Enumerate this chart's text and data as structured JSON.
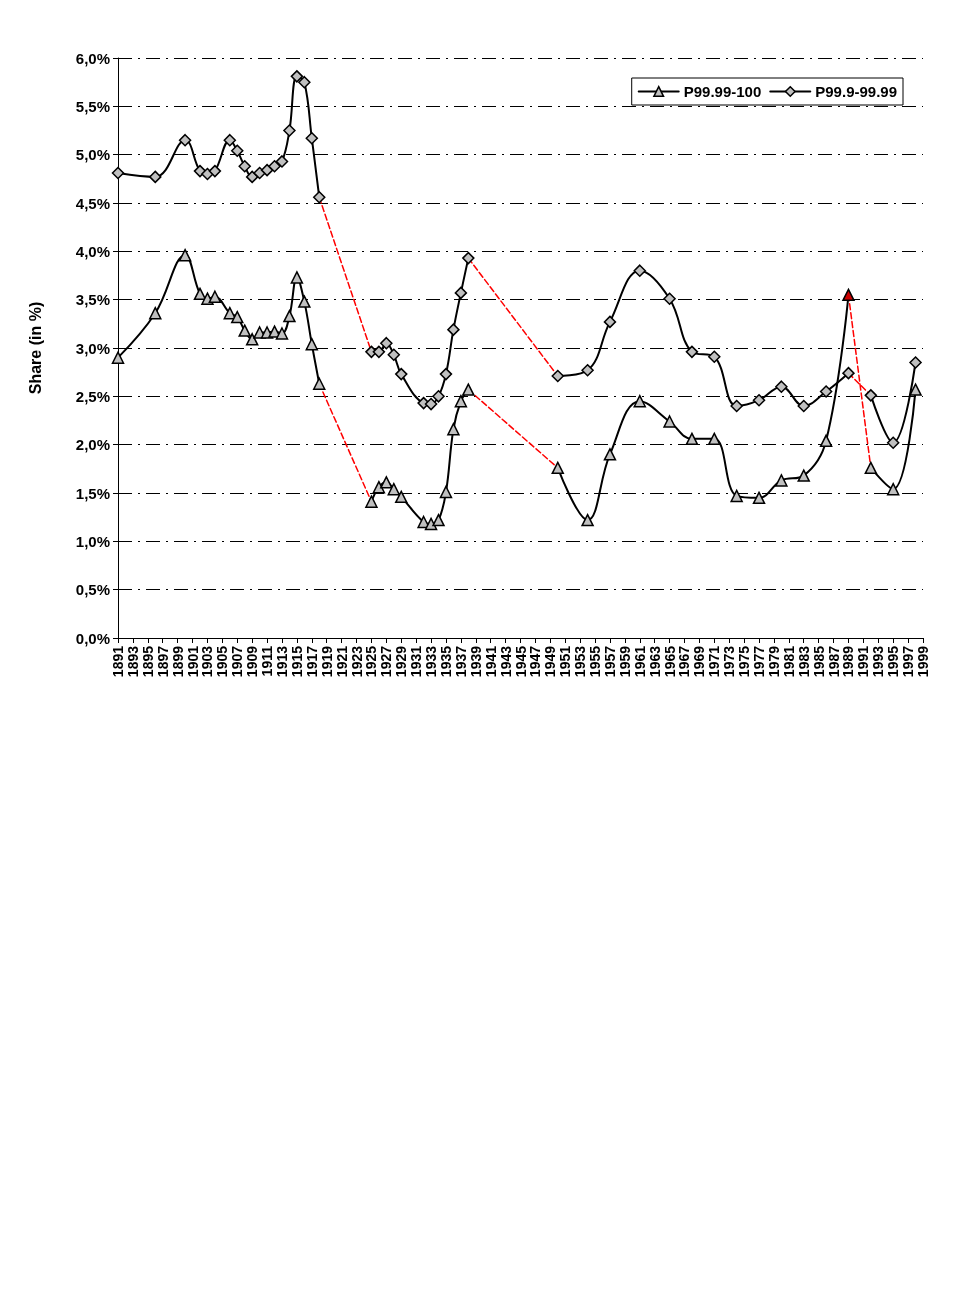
{
  "chart_data": {
    "type": "line",
    "ylabel": "Share (in %)",
    "xlim": [
      1891,
      1999
    ],
    "xticks": [
      1891,
      1893,
      1895,
      1897,
      1899,
      1901,
      1903,
      1905,
      1907,
      1909,
      1911,
      1913,
      1915,
      1917,
      1919,
      1921,
      1923,
      1925,
      1927,
      1929,
      1931,
      1933,
      1935,
      1937,
      1939,
      1941,
      1943,
      1945,
      1947,
      1949,
      1951,
      1953,
      1955,
      1957,
      1959,
      1961,
      1963,
      1965,
      1967,
      1969,
      1971,
      1973,
      1975,
      1977,
      1979,
      1981,
      1983,
      1985,
      1987,
      1989,
      1991,
      1993,
      1995,
      1997,
      1999
    ],
    "ylim": [
      0,
      6
    ],
    "yticks": [
      {
        "value": 0,
        "label": "0,0%"
      },
      {
        "value": 0.5,
        "label": "0,5%"
      },
      {
        "value": 1,
        "label": "1,0%"
      },
      {
        "value": 1.5,
        "label": "1,5%"
      },
      {
        "value": 2,
        "label": "2,0%"
      },
      {
        "value": 2.5,
        "label": "2,5%"
      },
      {
        "value": 3,
        "label": "3,0%"
      },
      {
        "value": 3.5,
        "label": "3,5%"
      },
      {
        "value": 4,
        "label": "4,0%"
      },
      {
        "value": 4.5,
        "label": "4,5%"
      },
      {
        "value": 5,
        "label": "5,0%"
      },
      {
        "value": 5.5,
        "label": "5,5%"
      },
      {
        "value": 6,
        "label": "6,0%"
      }
    ],
    "grid": "y",
    "legend": "top right",
    "series": [
      {
        "name": "P99.99-100",
        "color": "#000000",
        "marker": "triangle",
        "line_style": "solid",
        "x": [
          1891,
          1896,
          1900,
          1902,
          1903,
          1904,
          1906,
          1907,
          1908,
          1909,
          1910,
          1911,
          1912,
          1913,
          1914,
          1915,
          1916,
          1917,
          1918,
          1921,
          1925,
          1926,
          1927,
          1928,
          1929,
          1932,
          1933,
          1934,
          1935,
          1936,
          1937,
          1938,
          1944,
          1950,
          1954,
          1957,
          1961,
          1965,
          1968,
          1971,
          1974,
          1977,
          1980,
          1983,
          1986,
          1989,
          1990,
          1992,
          1995,
          1998
        ],
        "values": [
          2.9,
          3.36,
          3.96,
          3.56,
          3.51,
          3.53,
          3.36,
          3.32,
          3.18,
          3.09,
          3.16,
          3.16,
          3.17,
          3.15,
          3.33,
          3.73,
          3.48,
          3.04,
          2.63,
          null,
          1.41,
          1.56,
          1.61,
          1.54,
          1.46,
          1.2,
          1.18,
          1.22,
          1.51,
          2.16,
          2.45,
          2.57,
          null,
          1.76,
          1.22,
          1.9,
          2.45,
          2.24,
          2.06,
          2.06,
          1.47,
          1.45,
          1.63,
          1.68,
          2.04,
          3.55,
          null,
          1.76,
          1.54,
          2.57
        ],
        "colors": [
          "#c0c0c0",
          "#c0c0c0",
          "#c0c0c0",
          "#c0c0c0",
          "#c0c0c0",
          "#c0c0c0",
          "#c0c0c0",
          "#c0c0c0",
          "#c0c0c0",
          "#c0c0c0",
          "#c0c0c0",
          "#c0c0c0",
          "#c0c0c0",
          "#c0c0c0",
          "#c0c0c0",
          "#c0c0c0",
          "#c0c0c0",
          "#c0c0c0",
          "#c0c0c0",
          null,
          "#c0c0c0",
          "#c0c0c0",
          "#c0c0c0",
          "#c0c0c0",
          "#c0c0c0",
          "#c0c0c0",
          "#c0c0c0",
          "#c0c0c0",
          "#c0c0c0",
          "#c0c0c0",
          "#c0c0c0",
          "#c0c0c0",
          null,
          "#c0c0c0",
          "#c0c0c0",
          "#c0c0c0",
          "#c0c0c0",
          "#c0c0c0",
          "#c0c0c0",
          "#c0c0c0",
          "#c0c0c0",
          "#c0c0c0",
          "#c0c0c0",
          "#c0c0c0",
          "#c0c0c0",
          "#cc0000",
          null,
          "#c0c0c0",
          "#c0c0c0",
          "#c0c0c0"
        ]
      },
      {
        "name": "P99.9-99.99",
        "color": "#000000",
        "marker": "diamond",
        "line_style": "solid",
        "x": [
          1891,
          1896,
          1900,
          1902,
          1903,
          1904,
          1906,
          1907,
          1908,
          1909,
          1910,
          1911,
          1912,
          1913,
          1914,
          1915,
          1916,
          1917,
          1918,
          1921,
          1925,
          1926,
          1927,
          1928,
          1929,
          1932,
          1933,
          1934,
          1935,
          1936,
          1937,
          1938,
          1944,
          1950,
          1954,
          1957,
          1961,
          1965,
          1968,
          1971,
          1974,
          1977,
          1980,
          1983,
          1986,
          1989,
          1990,
          1992,
          1995,
          1998
        ],
        "values": [
          4.81,
          4.77,
          5.15,
          4.83,
          4.8,
          4.83,
          5.15,
          5.04,
          4.88,
          4.77,
          4.81,
          4.84,
          4.88,
          4.93,
          5.25,
          5.81,
          5.75,
          5.17,
          4.56,
          null,
          2.96,
          2.96,
          3.05,
          2.93,
          2.73,
          2.43,
          2.42,
          2.5,
          2.73,
          3.19,
          3.57,
          3.93,
          null,
          2.71,
          2.77,
          3.27,
          3.8,
          3.51,
          2.96,
          2.91,
          2.4,
          2.46,
          2.6,
          2.4,
          2.55,
          2.74,
          null,
          2.51,
          2.02,
          2.85
        ],
        "colors": [
          "#c0c0c0",
          "#c0c0c0",
          "#c0c0c0",
          "#c0c0c0",
          "#c0c0c0",
          "#c0c0c0",
          "#c0c0c0",
          "#c0c0c0",
          "#c0c0c0",
          "#c0c0c0",
          "#c0c0c0",
          "#c0c0c0",
          "#c0c0c0",
          "#c0c0c0",
          "#c0c0c0",
          "#c0c0c0",
          "#c0c0c0",
          "#c0c0c0",
          "#c0c0c0",
          null,
          "#c0c0c0",
          "#c0c0c0",
          "#c0c0c0",
          "#c0c0c0",
          "#c0c0c0",
          "#c0c0c0",
          "#c0c0c0",
          "#c0c0c0",
          "#c0c0c0",
          "#c0c0c0",
          "#c0c0c0",
          "#c0c0c0",
          null,
          "#c0c0c0",
          "#c0c0c0",
          "#c0c0c0",
          "#c0c0c0",
          "#c0c0c0",
          "#c0c0c0",
          "#c0c0c0",
          "#c0c0c0",
          "#c0c0c0",
          "#c0c0c0",
          "#c0c0c0",
          "#c0c0c0",
          "#c0c0c0",
          null,
          "#c0c0c0",
          "#c0c0c0",
          "#c0c0c0"
        ]
      },
      {
        "color": "#ff0000",
        "marker": "none",
        "line_style": "dashed",
        "x": [
          1918,
          1925
        ],
        "values": [
          2.63,
          1.41
        ]
      },
      {
        "color": "#ff0000",
        "marker": "none",
        "line_style": "dashed",
        "x": [
          1938,
          1950
        ],
        "values": [
          2.57,
          1.76
        ]
      },
      {
        "color": "#ff0000",
        "marker": "none",
        "line_style": "dashed",
        "x": [
          1989,
          1992
        ],
        "values": [
          3.55,
          1.76
        ]
      },
      {
        "color": "#ff0000",
        "marker": "none",
        "line_style": "dashed",
        "x": [
          1918,
          1925
        ],
        "values": [
          4.56,
          2.96
        ]
      },
      {
        "color": "#ff0000",
        "marker": "none",
        "line_style": "dashed",
        "x": [
          1938,
          1950
        ],
        "values": [
          3.93,
          2.71
        ]
      },
      {
        "color": "#ff0000",
        "marker": "none",
        "line_style": "dashed",
        "x": [
          1989,
          1992
        ],
        "values": [
          2.74,
          2.51
        ]
      }
    ]
  }
}
